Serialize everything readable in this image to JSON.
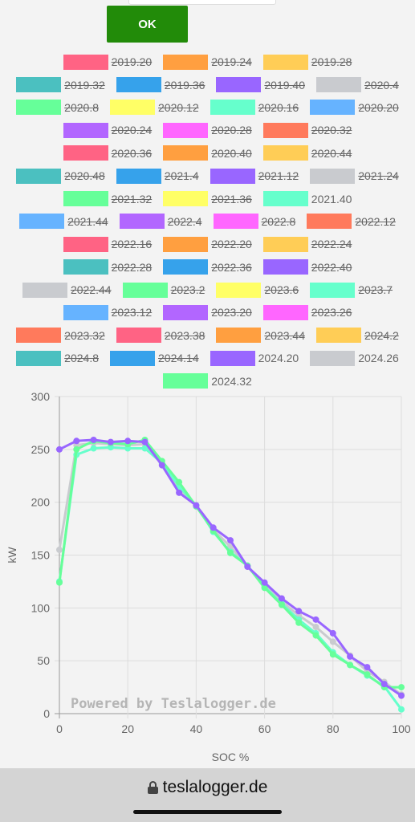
{
  "ok_label": "OK",
  "url": "teslalogger.de",
  "legend": [
    [
      {
        "label": "2019.20",
        "color": "#ff6384",
        "hidden": true
      },
      {
        "label": "2019.24",
        "color": "#ff9f40",
        "hidden": true
      },
      {
        "label": "2019.28",
        "color": "#ffcd56",
        "hidden": true
      }
    ],
    [
      {
        "label": "2019.32",
        "color": "#4bc0c0",
        "hidden": true
      },
      {
        "label": "2019.36",
        "color": "#36a2eb",
        "hidden": true
      },
      {
        "label": "2019.40",
        "color": "#9966ff",
        "hidden": true
      },
      {
        "label": "2020.4",
        "color": "#c9cbcf",
        "hidden": true
      }
    ],
    [
      {
        "label": "2020.8",
        "color": "#66ff99",
        "hidden": true
      },
      {
        "label": "2020.12",
        "color": "#ffff66",
        "hidden": true
      },
      {
        "label": "2020.16",
        "color": "#66ffcc",
        "hidden": true
      },
      {
        "label": "2020.20",
        "color": "#66b3ff",
        "hidden": true
      }
    ],
    [
      {
        "label": "2020.24",
        "color": "#b266ff",
        "hidden": true
      },
      {
        "label": "2020.28",
        "color": "#ff66ff",
        "hidden": true
      },
      {
        "label": "2020.32",
        "color": "#ff7a5c",
        "hidden": true
      }
    ],
    [
      {
        "label": "2020.36",
        "color": "#ff6384",
        "hidden": true
      },
      {
        "label": "2020.40",
        "color": "#ff9f40",
        "hidden": true
      },
      {
        "label": "2020.44",
        "color": "#ffcd56",
        "hidden": true
      }
    ],
    [
      {
        "label": "2020.48",
        "color": "#4bc0c0",
        "hidden": true
      },
      {
        "label": "2021.4",
        "color": "#36a2eb",
        "hidden": true
      },
      {
        "label": "2021.12",
        "color": "#9966ff",
        "hidden": true
      },
      {
        "label": "2021.24",
        "color": "#c9cbcf",
        "hidden": true
      }
    ],
    [
      {
        "label": "2021.32",
        "color": "#66ff99",
        "hidden": true
      },
      {
        "label": "2021.36",
        "color": "#ffff66",
        "hidden": true
      },
      {
        "label": "2021.40",
        "color": "#66ffcc",
        "hidden": false
      }
    ],
    [
      {
        "label": "2021.44",
        "color": "#66b3ff",
        "hidden": true
      },
      {
        "label": "2022.4",
        "color": "#b266ff",
        "hidden": true
      },
      {
        "label": "2022.8",
        "color": "#ff66ff",
        "hidden": true
      },
      {
        "label": "2022.12",
        "color": "#ff7a5c",
        "hidden": true
      }
    ],
    [
      {
        "label": "2022.16",
        "color": "#ff6384",
        "hidden": true
      },
      {
        "label": "2022.20",
        "color": "#ff9f40",
        "hidden": true
      },
      {
        "label": "2022.24",
        "color": "#ffcd56",
        "hidden": true
      }
    ],
    [
      {
        "label": "2022.28",
        "color": "#4bc0c0",
        "hidden": true
      },
      {
        "label": "2022.36",
        "color": "#36a2eb",
        "hidden": true
      },
      {
        "label": "2022.40",
        "color": "#9966ff",
        "hidden": true
      }
    ],
    [
      {
        "label": "2022.44",
        "color": "#c9cbcf",
        "hidden": true
      },
      {
        "label": "2023.2",
        "color": "#66ff99",
        "hidden": true
      },
      {
        "label": "2023.6",
        "color": "#ffff66",
        "hidden": true
      },
      {
        "label": "2023.7",
        "color": "#66ffcc",
        "hidden": true
      }
    ],
    [
      {
        "label": "2023.12",
        "color": "#66b3ff",
        "hidden": true
      },
      {
        "label": "2023.20",
        "color": "#b266ff",
        "hidden": true
      },
      {
        "label": "2023.26",
        "color": "#ff66ff",
        "hidden": true
      }
    ],
    [
      {
        "label": "2023.32",
        "color": "#ff7a5c",
        "hidden": true
      },
      {
        "label": "2023.38",
        "color": "#ff6384",
        "hidden": true
      },
      {
        "label": "2023.44",
        "color": "#ff9f40",
        "hidden": true
      },
      {
        "label": "2024.2",
        "color": "#ffcd56",
        "hidden": true
      }
    ],
    [
      {
        "label": "2024.8",
        "color": "#4bc0c0",
        "hidden": true
      },
      {
        "label": "2024.14",
        "color": "#36a2eb",
        "hidden": true
      },
      {
        "label": "2024.20",
        "color": "#9966ff",
        "hidden": false
      },
      {
        "label": "2024.26",
        "color": "#c9cbcf",
        "hidden": false
      }
    ],
    [
      {
        "label": "2024.32",
        "color": "#66ff99",
        "hidden": false
      }
    ]
  ],
  "watermark": "Powered by Teslalogger.de",
  "chart_data": {
    "type": "line",
    "xlabel": "SOC %",
    "ylabel": "kW",
    "xlim": [
      0,
      100
    ],
    "ylim": [
      0,
      300
    ],
    "xticks": [
      0,
      20,
      40,
      60,
      80,
      100
    ],
    "yticks": [
      0,
      50,
      100,
      150,
      200,
      250,
      300
    ],
    "grid": true,
    "legend_position": "top",
    "series": [
      {
        "name": "2021.40",
        "color": "#66ffcc",
        "x": [
          0,
          5,
          10,
          15,
          20,
          25,
          30,
          35,
          40,
          45,
          50,
          55,
          60,
          65,
          70,
          75,
          80,
          85,
          90,
          95,
          100
        ],
        "y": [
          125,
          245,
          251,
          252,
          251,
          251,
          237,
          215,
          197,
          172,
          153,
          140,
          120,
          104,
          89,
          76,
          58,
          46,
          36,
          26,
          4
        ]
      },
      {
        "name": "2024.20",
        "color": "#9966ff",
        "x": [
          0,
          5,
          10,
          15,
          20,
          25,
          30,
          35,
          40,
          45,
          50,
          55,
          60,
          65,
          70,
          75,
          80,
          85,
          90,
          95,
          100
        ],
        "y": [
          250,
          258,
          259,
          257,
          258,
          257,
          235,
          209,
          197,
          176,
          164,
          139,
          124,
          109,
          97,
          89,
          76,
          54,
          44,
          28,
          17
        ]
      },
      {
        "name": "2024.26",
        "color": "#c9cbcf",
        "x": [
          0,
          5,
          10,
          15,
          20,
          25,
          30,
          35,
          40,
          45,
          50,
          55,
          60,
          65,
          70,
          75,
          80,
          85,
          90,
          95,
          100
        ],
        "y": [
          155,
          254,
          256,
          255,
          254,
          255,
          236,
          212,
          197,
          174,
          158,
          139,
          122,
          106,
          93,
          82,
          68,
          55,
          40,
          30,
          18
        ]
      },
      {
        "name": "2024.32",
        "color": "#66ff99",
        "x": [
          0,
          5,
          10,
          15,
          20,
          25,
          30,
          35,
          40,
          45,
          50,
          55,
          60,
          65,
          70,
          75,
          80,
          85,
          90,
          95,
          100
        ],
        "y": [
          124,
          250,
          258,
          256,
          255,
          259,
          239,
          219,
          196,
          173,
          152,
          140,
          119,
          103,
          86,
          74,
          56,
          46,
          37,
          25,
          25
        ]
      }
    ]
  }
}
